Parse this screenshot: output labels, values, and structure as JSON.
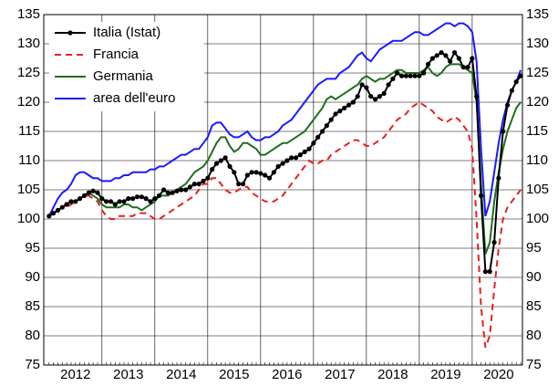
{
  "chart_data": {
    "type": "line",
    "x": [
      2012,
      2012.083,
      2012.167,
      2012.25,
      2012.333,
      2012.417,
      2012.5,
      2012.583,
      2012.667,
      2012.75,
      2012.833,
      2012.917,
      2013,
      2013.083,
      2013.167,
      2013.25,
      2013.333,
      2013.417,
      2013.5,
      2013.583,
      2013.667,
      2013.75,
      2013.833,
      2013.917,
      2014,
      2014.083,
      2014.167,
      2014.25,
      2014.333,
      2014.417,
      2014.5,
      2014.583,
      2014.667,
      2014.75,
      2014.833,
      2014.917,
      2015,
      2015.083,
      2015.167,
      2015.25,
      2015.333,
      2015.417,
      2015.5,
      2015.583,
      2015.667,
      2015.75,
      2015.833,
      2015.917,
      2016,
      2016.083,
      2016.167,
      2016.25,
      2016.333,
      2016.417,
      2016.5,
      2016.583,
      2016.667,
      2016.75,
      2016.833,
      2016.917,
      2017,
      2017.083,
      2017.167,
      2017.25,
      2017.333,
      2017.417,
      2017.5,
      2017.583,
      2017.667,
      2017.75,
      2017.833,
      2017.917,
      2018,
      2018.083,
      2018.167,
      2018.25,
      2018.333,
      2018.417,
      2018.5,
      2018.583,
      2018.667,
      2018.75,
      2018.833,
      2018.917,
      2019,
      2019.083,
      2019.167,
      2019.25,
      2019.333,
      2019.417,
      2019.5,
      2019.583,
      2019.667,
      2019.75,
      2019.833,
      2019.917,
      2020,
      2020.083,
      2020.167,
      2020.25,
      2020.333,
      2020.417,
      2020.5,
      2020.583,
      2020.667,
      2020.75,
      2020.833,
      2020.917
    ],
    "series": [
      {
        "name": "Italia (Istat)",
        "color": "#000000",
        "dash": false,
        "marker": true,
        "values": [
          100.5,
          101,
          101.5,
          102,
          102.5,
          103,
          103,
          103.5,
          104,
          104.5,
          104.8,
          104.5,
          103.5,
          103,
          103,
          102.5,
          103,
          103,
          103.5,
          103.5,
          103.8,
          103.8,
          103.5,
          103,
          103.5,
          104,
          105,
          104.5,
          104.5,
          104.8,
          105,
          105,
          105.5,
          106,
          106,
          106.5,
          107,
          108.5,
          109.5,
          110,
          110.5,
          109,
          108,
          106,
          106,
          107.5,
          108,
          108,
          107.8,
          107.5,
          107,
          108,
          109,
          109.5,
          110,
          110.5,
          110.5,
          111,
          111.5,
          112,
          113,
          114,
          115,
          116,
          117,
          118,
          118.5,
          119,
          119.5,
          120,
          121,
          123,
          122.5,
          121,
          120.5,
          121,
          121.5,
          123,
          124,
          125,
          124.5,
          124.5,
          124.5,
          124.5,
          124.5,
          125,
          126.5,
          127.5,
          128,
          128.5,
          128,
          127,
          128.5,
          127.5,
          126,
          126,
          127.5,
          121,
          104,
          91,
          91,
          96,
          107,
          115,
          119.5,
          122,
          123.5,
          124.5
        ]
      },
      {
        "name": "Francia",
        "color": "#e8201c",
        "dash": true,
        "marker": false,
        "values": [
          100.5,
          101,
          101.5,
          102,
          102,
          102.5,
          103,
          103.5,
          104,
          104,
          103.5,
          103,
          101.5,
          100.5,
          100,
          100,
          100.5,
          100.5,
          100.5,
          100.5,
          101,
          101,
          101,
          100.5,
          100,
          100,
          100.5,
          101,
          101.5,
          102,
          102.5,
          103,
          103.5,
          104,
          105,
          106,
          106,
          107,
          107,
          106,
          105,
          104.5,
          104.5,
          105,
          105.5,
          105.5,
          104.5,
          104,
          103.5,
          103,
          103,
          103,
          103.5,
          104,
          105,
          106,
          107,
          108,
          109,
          110,
          109.5,
          109.5,
          110,
          110,
          111,
          111.5,
          112,
          112.5,
          113,
          113.5,
          113.5,
          113,
          112.5,
          112.5,
          113,
          113.5,
          114,
          115,
          116,
          117,
          117.5,
          118,
          119,
          119.5,
          120,
          119.5,
          119,
          118.5,
          117.5,
          117,
          116.5,
          117,
          117.5,
          117,
          116,
          115,
          112,
          100,
          85,
          78,
          80,
          88,
          95,
          100,
          102,
          103,
          104,
          105
        ]
      },
      {
        "name": "Germania",
        "color": "#1e6e1e",
        "dash": false,
        "marker": false,
        "values": [
          100.5,
          101,
          101.5,
          102,
          102.5,
          103,
          103,
          103.5,
          104,
          104.5,
          104,
          103.5,
          102.5,
          102,
          102,
          102,
          102,
          102.5,
          102.5,
          102,
          102,
          101.5,
          102,
          102.5,
          103,
          104,
          104,
          104,
          104.5,
          105,
          105.5,
          106,
          107,
          108,
          108.5,
          109,
          110,
          111.5,
          113,
          114,
          114,
          112.5,
          111.5,
          112,
          113,
          113,
          112.5,
          112,
          111,
          111,
          111.5,
          112,
          112.5,
          113,
          113,
          113.5,
          114,
          114.5,
          115,
          116,
          117,
          118,
          119,
          120.5,
          121,
          120.5,
          121,
          121.5,
          122,
          122.5,
          123,
          124,
          124.5,
          124,
          123.5,
          124,
          124,
          124.5,
          125,
          125.5,
          125.5,
          125,
          125,
          125,
          125,
          125.5,
          126,
          125,
          124.5,
          125,
          126,
          126.5,
          126.5,
          126.5,
          126,
          125.5,
          125,
          120,
          106,
          94,
          96,
          103,
          108,
          112,
          115,
          117,
          119,
          120
        ]
      },
      {
        "name": "area dell'euro",
        "color": "#1a1aff",
        "dash": false,
        "marker": false,
        "values": [
          100.5,
          102,
          103.5,
          104.5,
          105,
          106,
          107.5,
          108,
          108,
          107.5,
          107,
          107,
          106.5,
          106.5,
          106.5,
          107,
          107,
          107.5,
          107.5,
          108,
          108,
          108,
          108,
          108.5,
          108.5,
          109,
          109,
          109.5,
          110,
          110.5,
          111,
          111,
          111.5,
          112,
          112,
          113,
          114,
          116,
          116.5,
          116.5,
          115.5,
          114.5,
          114,
          114,
          114.5,
          115,
          114,
          113.5,
          113.5,
          114,
          114,
          114.5,
          115,
          116,
          116.5,
          117,
          118,
          119,
          120,
          121,
          122,
          123,
          123.5,
          124,
          124,
          124,
          125,
          125.5,
          126,
          127,
          128,
          128.5,
          127.5,
          127,
          128,
          129,
          129.5,
          130,
          130.5,
          130.5,
          130.5,
          131,
          131.5,
          132,
          132,
          131.5,
          131.5,
          132,
          132.5,
          133,
          133.5,
          133.5,
          133,
          133.5,
          133.5,
          133,
          132,
          127,
          112,
          100.5,
          103,
          108,
          113,
          117,
          120,
          122,
          123.5,
          125.5
        ]
      }
    ],
    "xlim": [
      2011.9,
      2020.95
    ],
    "xticks": [
      {
        "value": 2012.5,
        "label": "2012"
      },
      {
        "value": 2013.5,
        "label": "2013"
      },
      {
        "value": 2014.5,
        "label": "2014"
      },
      {
        "value": 2015.5,
        "label": "2015"
      },
      {
        "value": 2016.5,
        "label": "2016"
      },
      {
        "value": 2017.5,
        "label": "2017"
      },
      {
        "value": 2018.5,
        "label": "2018"
      },
      {
        "value": 2019.5,
        "label": "2019"
      },
      {
        "value": 2020.5,
        "label": "2020"
      }
    ],
    "xgrid": [
      2013,
      2014,
      2015,
      2016,
      2017,
      2018,
      2019,
      2020
    ],
    "ylim": [
      75,
      135
    ],
    "yticks": [
      75,
      80,
      85,
      90,
      95,
      100,
      105,
      110,
      115,
      120,
      125,
      130,
      135
    ],
    "grid": true,
    "legend": "upper left"
  }
}
